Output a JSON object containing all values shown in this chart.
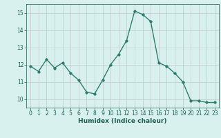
{
  "x": [
    0,
    1,
    2,
    3,
    4,
    5,
    6,
    7,
    8,
    9,
    10,
    11,
    12,
    13,
    14,
    15,
    16,
    17,
    18,
    19,
    20,
    21,
    22,
    23
  ],
  "y": [
    11.9,
    11.6,
    12.3,
    11.8,
    12.1,
    11.5,
    11.1,
    10.4,
    10.3,
    11.1,
    12.0,
    12.6,
    13.4,
    15.1,
    14.9,
    14.5,
    12.1,
    11.9,
    11.5,
    11.0,
    9.9,
    9.9,
    9.8,
    9.8
  ],
  "line_color": "#2e7d6e",
  "marker": "D",
  "marker_size": 1.8,
  "bg_color": "#d8f0ee",
  "grid_color": "#c0c8c8",
  "xlabel": "Humidex (Indice chaleur)",
  "xlabel_color": "#1a5c52",
  "tick_color": "#1a5c52",
  "ylim": [
    9.5,
    15.5
  ],
  "xlim": [
    -0.5,
    23.5
  ],
  "yticks": [
    10,
    11,
    12,
    13,
    14,
    15
  ],
  "xticks": [
    0,
    1,
    2,
    3,
    4,
    5,
    6,
    7,
    8,
    9,
    10,
    11,
    12,
    13,
    14,
    15,
    16,
    17,
    18,
    19,
    20,
    21,
    22,
    23
  ],
  "linewidth": 1.0,
  "font_size": 5.5,
  "xlabel_fontsize": 6.5
}
